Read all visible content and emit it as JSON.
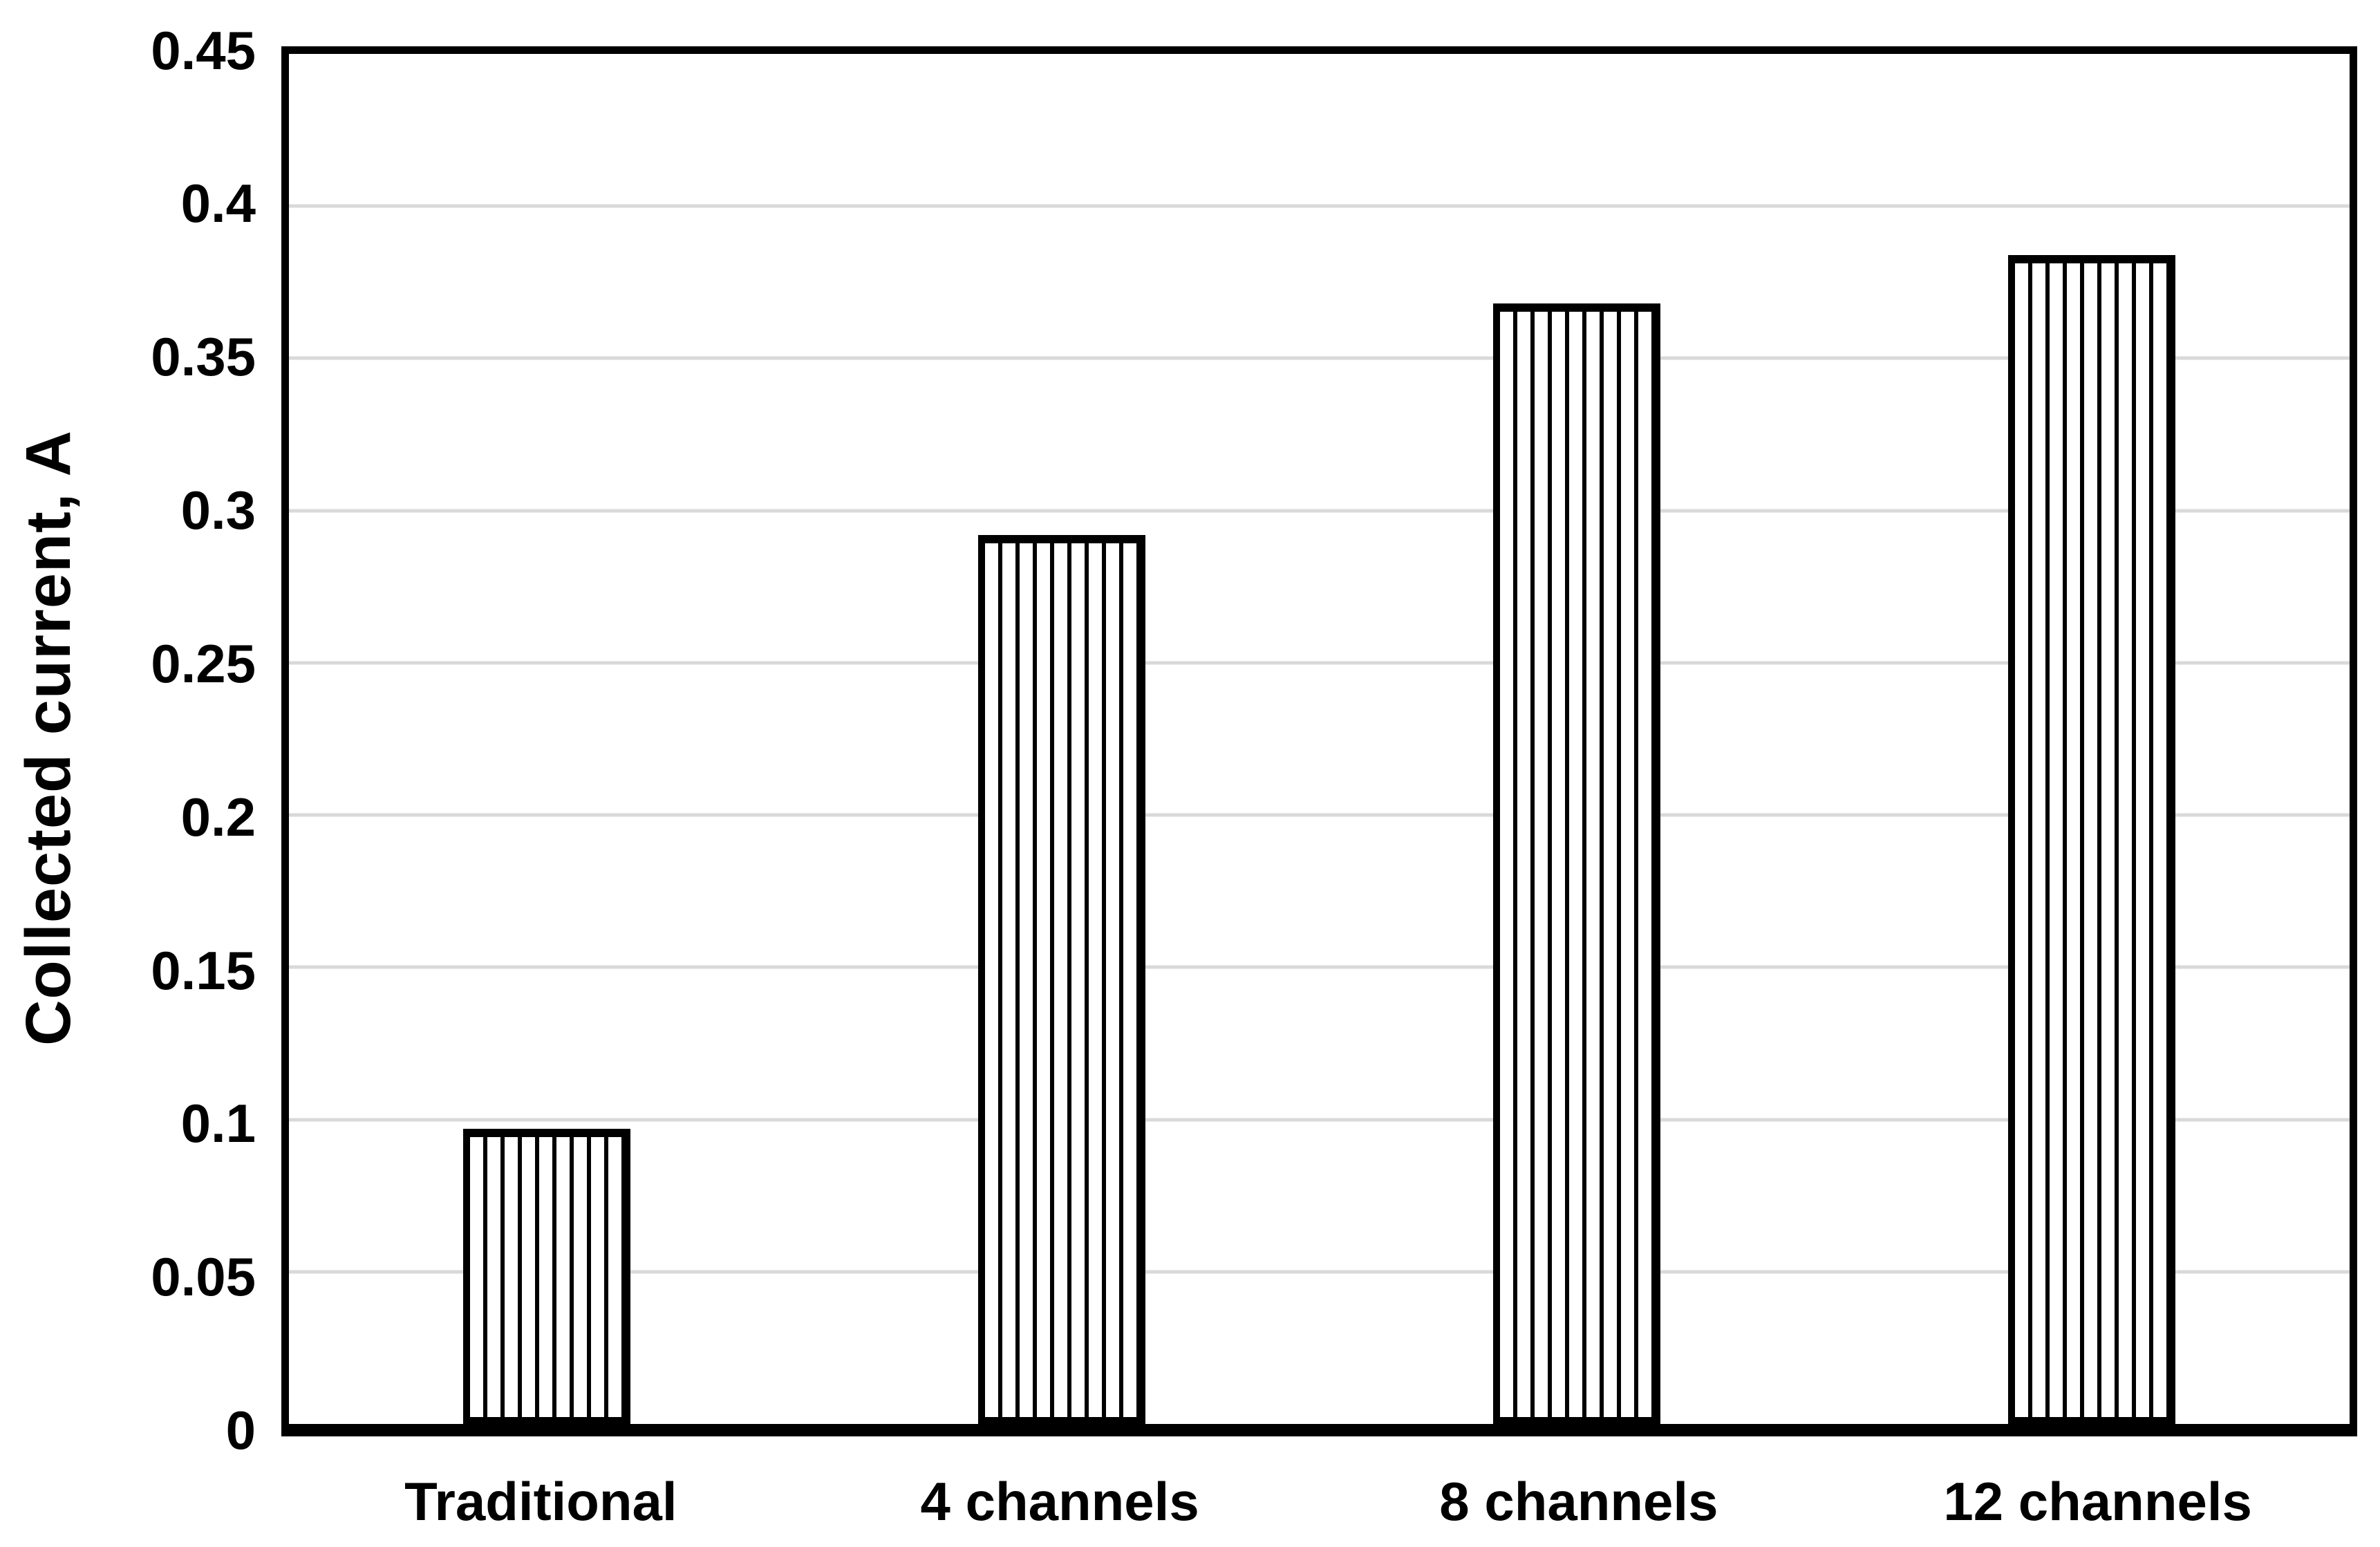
{
  "chart_data": {
    "type": "bar",
    "title": "",
    "xlabel": "",
    "ylabel": "Collected current, A",
    "categories": [
      "Traditional",
      "4 channels",
      "8 channels",
      "12 channels"
    ],
    "values": [
      0.097,
      0.292,
      0.368,
      0.384
    ],
    "ylim": [
      0,
      0.45
    ],
    "ytick_step": 0.05,
    "yticks": [
      {
        "label": "0",
        "value": 0
      },
      {
        "label": "0.05",
        "value": 0.05
      },
      {
        "label": "0.1",
        "value": 0.1
      },
      {
        "label": "0.15",
        "value": 0.15
      },
      {
        "label": "0.2",
        "value": 0.2
      },
      {
        "label": "0.25",
        "value": 0.25
      },
      {
        "label": "0.3",
        "value": 0.3
      },
      {
        "label": "0.35",
        "value": 0.35
      },
      {
        "label": "0.4",
        "value": 0.4
      },
      {
        "label": "0.45",
        "value": 0.45
      }
    ],
    "grid": "horizontal",
    "legend_position": "none",
    "colors": {
      "text": "#000000",
      "plot_border": "#000000",
      "gridline": "#d9d9d9",
      "bar_border": "#000000",
      "bar_fill": "#ffffff",
      "bar_hatch": "vertical-stripes-black"
    }
  }
}
